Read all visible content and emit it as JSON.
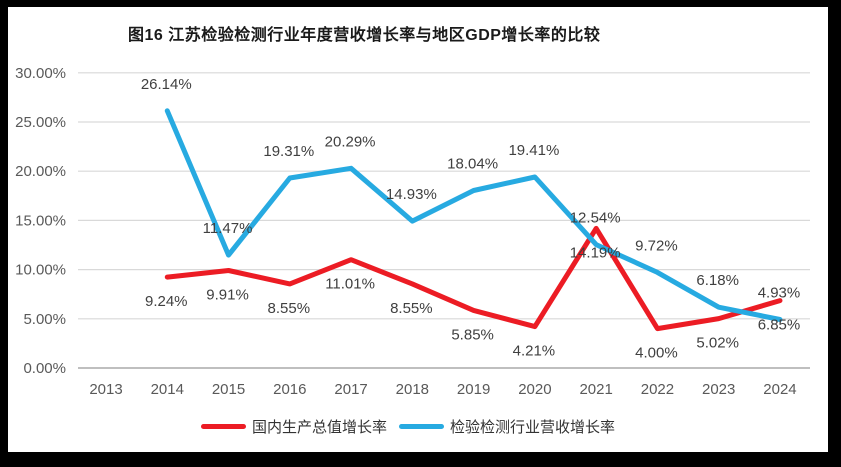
{
  "frame": {
    "bg": "#000000",
    "panel_bg": "#FFFFFF"
  },
  "title": "图16  江苏检验检测行业年度营收增长率与地区GDP增长率的比较",
  "chart_data": {
    "type": "line",
    "title": "图16  江苏检验检测行业年度营收增长率与地区GDP增长率的比较",
    "categories": [
      "2013",
      "2014",
      "2015",
      "2016",
      "2017",
      "2018",
      "2019",
      "2020",
      "2021",
      "2022",
      "2023",
      "2024"
    ],
    "series": [
      {
        "name": "国内生产总值增长率",
        "color": "#EC1C24",
        "values": [
          null,
          9.24,
          9.91,
          8.55,
          11.01,
          8.55,
          5.85,
          4.21,
          14.19,
          4.0,
          5.02,
          6.85
        ],
        "data_labels": [
          null,
          "9.24%",
          "9.91%",
          "8.55%",
          "11.01%",
          "8.55%",
          "5.85%",
          "4.21%",
          "14.19%",
          "4.00%",
          "5.02%",
          "6.85%"
        ]
      },
      {
        "name": "检验检测行业营收增长率",
        "color": "#27AAE1",
        "values": [
          null,
          26.14,
          11.47,
          19.31,
          20.29,
          14.93,
          18.04,
          19.41,
          12.54,
          9.72,
          6.18,
          4.93
        ],
        "data_labels": [
          null,
          "26.14%",
          "11.47%",
          "19.31%",
          "20.29%",
          "14.93%",
          "18.04%",
          "19.41%",
          "12.54%",
          "9.72%",
          "6.18%",
          "4.93%"
        ]
      }
    ],
    "xlabel": "",
    "ylabel": "",
    "ylim": [
      0,
      30
    ],
    "y_tick_step": 5,
    "y_ticks": [
      "0.00%",
      "5.00%",
      "10.00%",
      "15.00%",
      "20.00%",
      "25.00%",
      "30.00%"
    ],
    "grid": true,
    "legend_position": "bottom",
    "style": {
      "grid_color": "#D9D9D9",
      "axis_color": "#BFBFBF",
      "tick_label_color": "#595959",
      "data_label_color": "#404040",
      "line_width": 5
    }
  },
  "legend": {
    "items": [
      {
        "label": "国内生产总值增长率",
        "color": "#EC1C24"
      },
      {
        "label": "检验检测行业营收增长率",
        "color": "#27AAE1"
      }
    ]
  }
}
